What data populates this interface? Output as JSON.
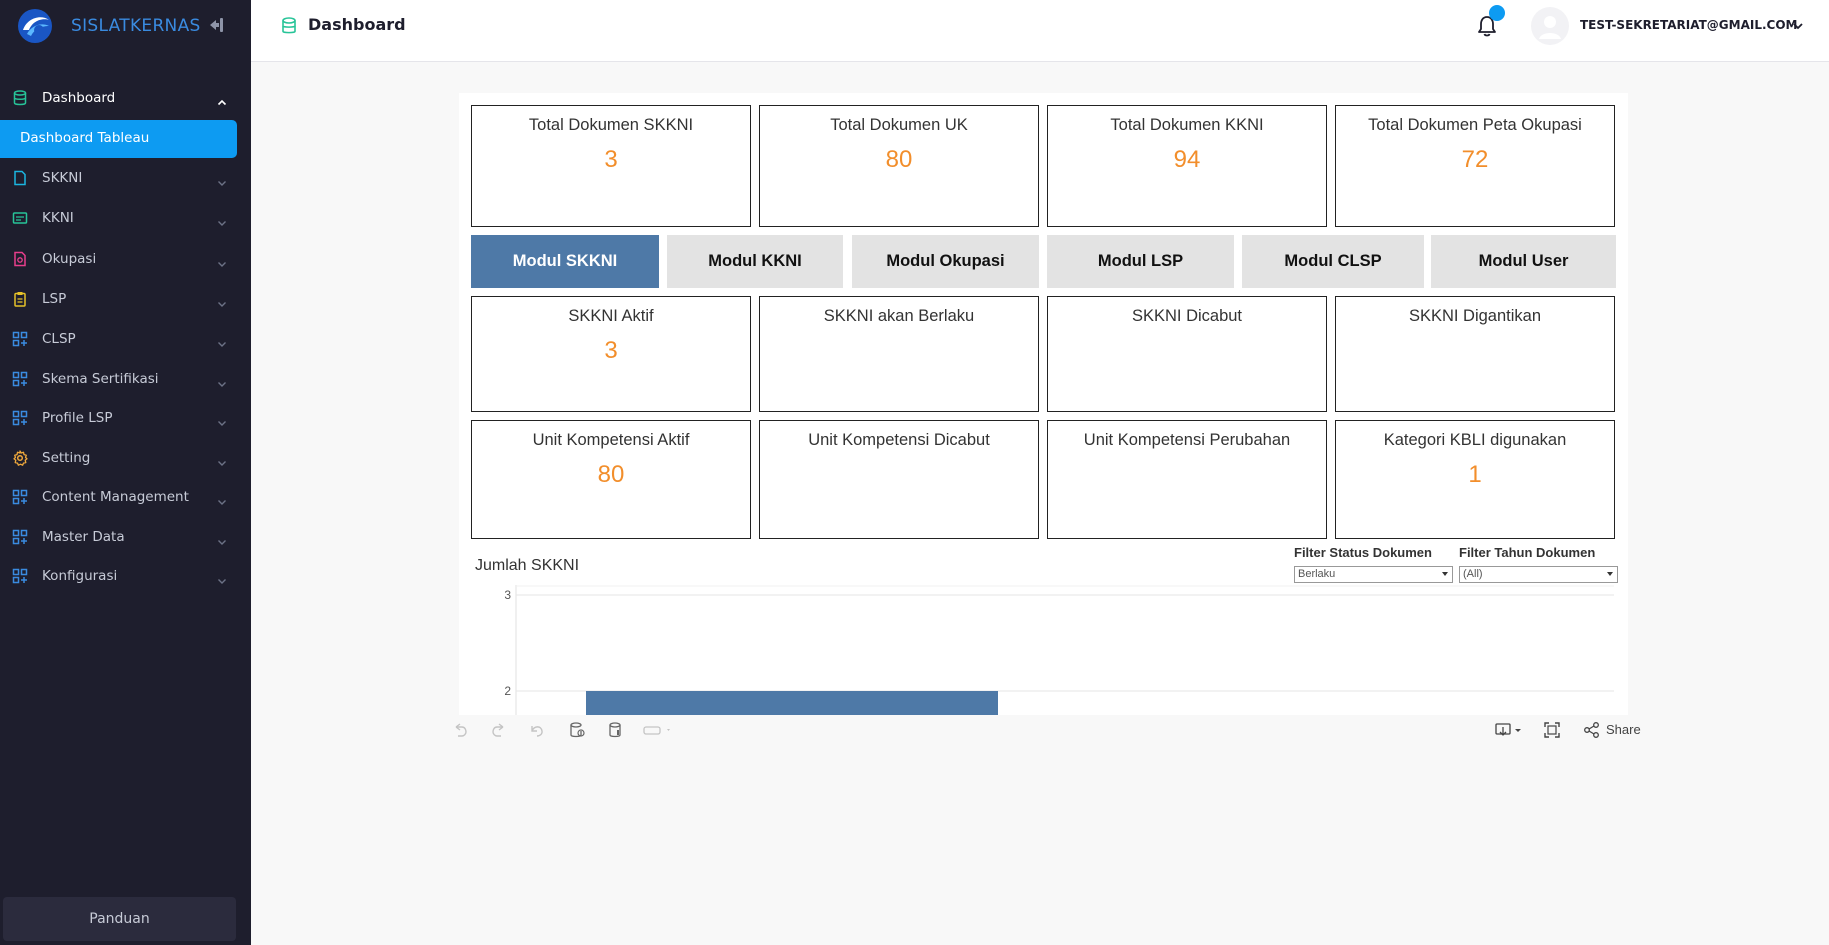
{
  "app": {
    "brand_name": "SISLATKERNAS",
    "accent_color": "#0d9bf2",
    "sidebar_bg": "#1e1e2d"
  },
  "sidebar": {
    "items": [
      {
        "label": "Dashboard",
        "icon": "database-icon",
        "icon_color": "#27c498",
        "expanded": true
      },
      {
        "label": "SKKNI",
        "icon": "file-icon",
        "icon_color": "#1bb5e0"
      },
      {
        "label": "KKNI",
        "icon": "document-icon",
        "icon_color": "#27c498"
      },
      {
        "label": "Okupasi",
        "icon": "file-search-icon",
        "icon_color": "#e83e8c"
      },
      {
        "label": "LSP",
        "icon": "clipboard-icon",
        "icon_color": "#e6c229"
      },
      {
        "label": "CLSP",
        "icon": "grid-plus-icon",
        "icon_color": "#3a8be0"
      },
      {
        "label": "Skema Sertifikasi",
        "icon": "grid-plus-icon",
        "icon_color": "#3a8be0"
      },
      {
        "label": "Profile LSP",
        "icon": "grid-plus-icon",
        "icon_color": "#3a8be0"
      },
      {
        "label": "Setting",
        "icon": "gear-icon",
        "icon_color": "#f0a93c"
      },
      {
        "label": "Content Management",
        "icon": "grid-plus-icon",
        "icon_color": "#3a8be0"
      },
      {
        "label": "Master Data",
        "icon": "grid-plus-icon",
        "icon_color": "#3a8be0"
      },
      {
        "label": "Konfigurasi",
        "icon": "grid-plus-icon",
        "icon_color": "#3a8be0"
      }
    ],
    "sub_item": "Dashboard Tableau",
    "footer_button": "Panduan"
  },
  "header": {
    "title": "Dashboard",
    "user_email": "TEST-SEKRETARIAT@GMAIL.COM"
  },
  "dashboard": {
    "top_cards": [
      {
        "title": "Total Dokumen SKKNI",
        "value": "3"
      },
      {
        "title": "Total Dokumen UK",
        "value": "80"
      },
      {
        "title": "Total Dokumen KKNI",
        "value": "94"
      },
      {
        "title": "Total Dokumen Peta Okupasi",
        "value": "72"
      }
    ],
    "modules": [
      {
        "label": "Modul SKKNI",
        "active": true
      },
      {
        "label": "Modul KKNI"
      },
      {
        "label": "Modul Okupasi"
      },
      {
        "label": "Modul LSP"
      },
      {
        "label": "Modul CLSP"
      },
      {
        "label": "Modul User"
      }
    ],
    "row2_cards": [
      {
        "title": "SKKNI Aktif",
        "value": "3"
      },
      {
        "title": "SKKNI akan Berlaku",
        "value": ""
      },
      {
        "title": "SKKNI Dicabut",
        "value": ""
      },
      {
        "title": "SKKNI Digantikan",
        "value": ""
      }
    ],
    "row3_cards": [
      {
        "title": "Unit Kompetensi Aktif",
        "value": "80"
      },
      {
        "title": "Unit Kompetensi Dicabut",
        "value": ""
      },
      {
        "title": "Unit Kompetensi Perubahan",
        "value": ""
      },
      {
        "title": "Kategori KBLI digunakan",
        "value": "1"
      }
    ],
    "chart_title": "Jumlah SKKNI",
    "filters": [
      {
        "label": "Filter Status Dokumen",
        "value": "Berlaku"
      },
      {
        "label": "Filter Tahun Dokumen",
        "value": "(All)"
      }
    ],
    "value_color": "#f28e2b",
    "module_active_color": "#4e79a7"
  },
  "chart_data": {
    "type": "bar",
    "title": "Jumlah SKKNI",
    "y_ticks": [
      "3",
      "2"
    ],
    "ylim": [
      0,
      3
    ],
    "series": [
      {
        "values": [
          2
        ]
      }
    ],
    "bar_color": "#4e79a7",
    "note_visible_range": "chart truncated at bottom"
  },
  "toolbar": {
    "share_label": "Share"
  }
}
